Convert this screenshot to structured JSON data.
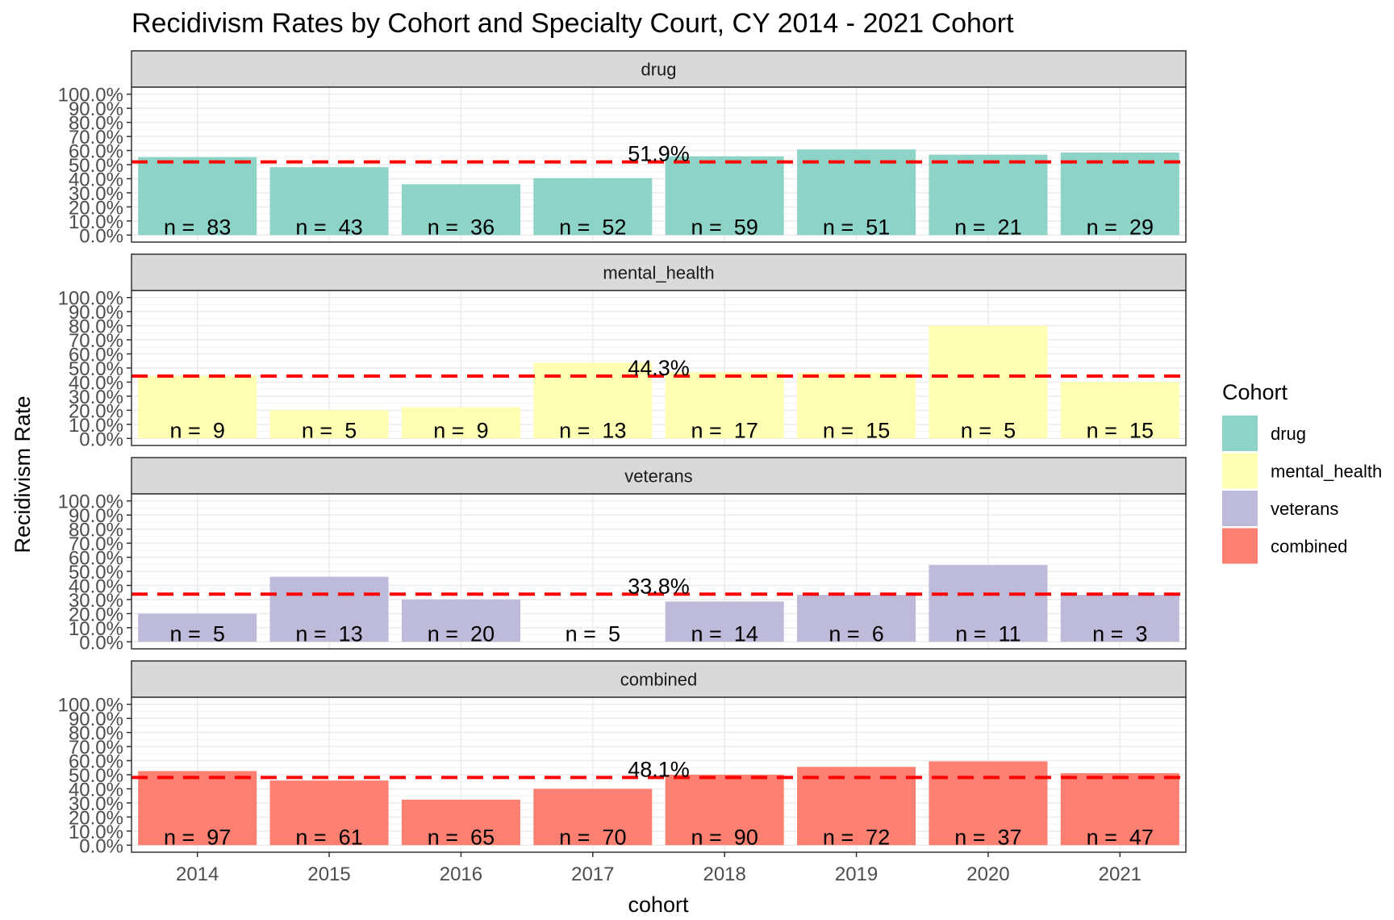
{
  "chart_data": {
    "type": "bar",
    "title": "Recidivism Rates by Cohort and Specialty Court, CY 2014 - 2021 Cohort",
    "xlabel": "cohort",
    "ylabel": "Recidivism Rate",
    "ylim": [
      0,
      1
    ],
    "yticks": [
      "0.0%",
      "10.0%",
      "20.0%",
      "30.0%",
      "40.0%",
      "50.0%",
      "60.0%",
      "70.0%",
      "80.0%",
      "90.0%",
      "100.0%"
    ],
    "categories": [
      "2014",
      "2015",
      "2016",
      "2017",
      "2018",
      "2019",
      "2020",
      "2021"
    ],
    "grid": true,
    "legend": {
      "title": "Cohort",
      "position": "right",
      "items": [
        {
          "label": "drug",
          "color": "#8DD3C7"
        },
        {
          "label": "mental_health",
          "color": "#FFFFB3"
        },
        {
          "label": "veterans",
          "color": "#BEBADA"
        },
        {
          "label": "combined",
          "color": "#FB8072"
        }
      ]
    },
    "reference_line_color": "#FF0000",
    "panels": [
      {
        "name": "drug",
        "color": "#8DD3C7",
        "values": [
          0.554,
          0.482,
          0.361,
          0.404,
          0.559,
          0.608,
          0.571,
          0.586
        ],
        "n_labels": [
          "n =  83",
          "n =  43",
          "n =  36",
          "n =  52",
          "n =  59",
          "n =  51",
          "n =  21",
          "n =  29"
        ],
        "mean": 0.519,
        "mean_label": "51.9%"
      },
      {
        "name": "mental_health",
        "color": "#FFFFB3",
        "values": [
          0.444,
          0.2,
          0.222,
          0.538,
          0.471,
          0.467,
          0.8,
          0.4
        ],
        "n_labels": [
          "n =  9",
          "n =  5",
          "n =  9",
          "n =  13",
          "n =  17",
          "n =  15",
          "n =  5",
          "n =  15"
        ],
        "mean": 0.443,
        "mean_label": "44.3%"
      },
      {
        "name": "veterans",
        "color": "#BEBADA",
        "values": [
          0.2,
          0.462,
          0.3,
          0.0,
          0.286,
          0.333,
          0.545,
          0.333
        ],
        "n_labels": [
          "n =  5",
          "n =  13",
          "n =  20",
          "n =  5",
          "n =  14",
          "n =  6",
          "n =  11",
          "n =  3"
        ],
        "mean": 0.338,
        "mean_label": "33.8%"
      },
      {
        "name": "combined",
        "color": "#FB8072",
        "values": [
          0.526,
          0.459,
          0.323,
          0.4,
          0.5,
          0.556,
          0.595,
          0.511
        ],
        "n_labels": [
          "n =  97",
          "n =  61",
          "n =  65",
          "n =  70",
          "n =  90",
          "n =  72",
          "n =  37",
          "n =  47"
        ],
        "mean": 0.481,
        "mean_label": "48.1%"
      }
    ]
  }
}
